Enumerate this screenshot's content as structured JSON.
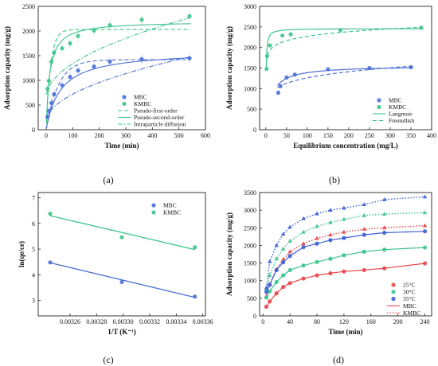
{
  "chart_data": [
    {
      "panel": "(a)",
      "type": "scatter",
      "xlabel": "Time (min)",
      "ylabel": "Adsorption capacity (mg/g)",
      "xlim": [
        -30,
        600
      ],
      "ylim": [
        0,
        2500
      ],
      "xticks": [
        0,
        100,
        200,
        300,
        400,
        500,
        600
      ],
      "yticks": [
        0,
        500,
        1000,
        1500,
        2000,
        2500
      ],
      "legend_position": "center-right",
      "legend": [
        "MBC",
        "KMBC",
        "Pseudo-first-order",
        "Pseudo-second-order",
        "Intraparticle diffusion"
      ],
      "series": [
        {
          "name": "MBC",
          "color": "#4a6fd4",
          "marker": "circle",
          "x": [
            5,
            10,
            20,
            30,
            60,
            90,
            120,
            180,
            240,
            360,
            540
          ],
          "y": [
            260,
            380,
            540,
            720,
            900,
            1070,
            1200,
            1280,
            1380,
            1430,
            1450
          ]
        },
        {
          "name": "KMBC",
          "color": "#3cc48c",
          "marker": "circle",
          "x": [
            5,
            10,
            20,
            30,
            60,
            90,
            120,
            180,
            240,
            360,
            540
          ],
          "y": [
            830,
            990,
            1380,
            1560,
            1650,
            1750,
            1900,
            2010,
            2120,
            2230,
            2300
          ]
        }
      ],
      "fits": [
        {
          "series": "MBC",
          "model": "Pseudo-first-order",
          "style": "dashed",
          "qe": 1420,
          "k": 0.022
        },
        {
          "series": "MBC",
          "model": "Pseudo-second-order",
          "style": "solid",
          "qe": 1600,
          "k": 1.16e-05
        },
        {
          "series": "MBC",
          "model": "Intraparticle diffusion",
          "style": "dashdot",
          "intercept": 150,
          "slope": 57
        },
        {
          "series": "KMBC",
          "model": "Pseudo-first-order",
          "style": "dashed",
          "qe": 2030,
          "k": 0.06
        },
        {
          "series": "KMBC",
          "model": "Pseudo-second-order",
          "style": "solid",
          "qe": 2200,
          "k": 3.5e-05
        },
        {
          "series": "KMBC",
          "model": "Intraparticle diffusion",
          "style": "dashdot",
          "intercept": 640,
          "slope": 70
        }
      ]
    },
    {
      "panel": "(b)",
      "type": "scatter",
      "xlabel": "Equilibrium concentration (mg/L)",
      "ylabel": "Adsorption capacity (mg/g)",
      "xlim": [
        -15,
        400
      ],
      "ylim": [
        0,
        3000
      ],
      "xticks": [
        0,
        50,
        100,
        150,
        200,
        250,
        300,
        350,
        400
      ],
      "yticks": [
        0,
        500,
        1000,
        1500,
        2000,
        2500,
        3000
      ],
      "legend_position": "center-right",
      "legend": [
        "MBC",
        "KMBC",
        "Langmuir",
        "Freundlish"
      ],
      "series": [
        {
          "name": "MBC",
          "color": "#4a6fd4",
          "marker": "circle",
          "x": [
            30,
            35,
            50,
            70,
            150,
            250,
            350
          ],
          "y": [
            900,
            1060,
            1270,
            1340,
            1470,
            1500,
            1520
          ]
        },
        {
          "name": "KMBC",
          "color": "#3cc48c",
          "marker": "circle",
          "x": [
            2,
            3,
            10,
            40,
            60,
            180,
            375
          ],
          "y": [
            1480,
            1790,
            2050,
            2290,
            2320,
            2420,
            2480
          ]
        }
      ],
      "fits": [
        {
          "series": "MBC",
          "model": "Langmuir",
          "style": "solid",
          "qmax": 1560,
          "KL": 0.08,
          "xrange": [
            28,
            355
          ]
        },
        {
          "series": "MBC",
          "model": "Freundlish",
          "style": "dashed",
          "KF": 600,
          "n": 6.2,
          "xrange": [
            28,
            355
          ]
        },
        {
          "series": "KMBC",
          "model": "Langmuir",
          "style": "solid",
          "qmax": 2460,
          "KL": 1.4,
          "xrange": [
            1,
            378
          ]
        },
        {
          "series": "KMBC",
          "model": "Freundlish",
          "style": "dashed",
          "KF": 1650,
          "n": 14.4,
          "xrange": [
            1,
            378
          ]
        }
      ]
    },
    {
      "panel": "(c)",
      "type": "scatter",
      "xlabel": "1/T (K⁻¹)",
      "ylabel": "ln(qe/ce)",
      "xlim": [
        0.003236,
        0.003362
      ],
      "ylim": [
        2.4,
        7.2
      ],
      "xticks": [
        0.00326,
        0.00328,
        0.0033,
        0.00332,
        0.00334,
        0.00336
      ],
      "xtick_labels": [
        "0.00326",
        "0.00328",
        "0.00330",
        "0.00332",
        "0.00334",
        "0.00336"
      ],
      "yticks": [
        3,
        4,
        5,
        6,
        7
      ],
      "legend_position": "top-right",
      "legend": [
        "MBC",
        "KMBC"
      ],
      "series": [
        {
          "name": "MBC",
          "color": "#4a6fd4",
          "marker": "circle",
          "x": [
            0.003245,
            0.003299,
            0.003354
          ],
          "y": [
            4.48,
            3.72,
            3.15
          ]
        },
        {
          "name": "KMBC",
          "color": "#3cc48c",
          "marker": "circle",
          "x": [
            0.003245,
            0.003299,
            0.003354
          ],
          "y": [
            6.38,
            5.46,
            5.07
          ]
        }
      ],
      "fits": [
        {
          "series": "MBC",
          "model": "linear",
          "style": "solid",
          "x": [
            0.003245,
            0.003354
          ],
          "y": [
            4.47,
            3.12
          ]
        },
        {
          "series": "KMBC",
          "model": "linear",
          "style": "solid",
          "x": [
            0.003245,
            0.003354
          ],
          "y": [
            6.3,
            4.98
          ]
        }
      ]
    },
    {
      "panel": "(d)",
      "type": "scatter",
      "xlabel": "Time (min)",
      "ylabel": "Adsorption capacity (mg/g)",
      "xlim": [
        -5,
        250
      ],
      "ylim": [
        0,
        3500
      ],
      "xticks": [
        0,
        40,
        80,
        120,
        160,
        200,
        240
      ],
      "yticks": [
        0,
        500,
        1000,
        1500,
        2000,
        2500,
        3000,
        3500
      ],
      "legend_position": "bottom-right",
      "legend": [
        "25°C",
        "30°C",
        "35°C",
        "MBC",
        "KMBC"
      ],
      "x": [
        5,
        10,
        20,
        30,
        40,
        60,
        80,
        100,
        120,
        150,
        180,
        240
      ],
      "series": [
        {
          "name": "25°C",
          "group": "MBC",
          "color": "#e8454a",
          "marker": "circle",
          "style": "solid",
          "y": [
            260,
            410,
            640,
            820,
            930,
            1060,
            1150,
            1210,
            1260,
            1300,
            1350,
            1490
          ]
        },
        {
          "name": "25°C",
          "group": "KMBC",
          "color": "#e8454a",
          "marker": "triangle",
          "style": "dotted",
          "y": [
            560,
            900,
            1320,
            1600,
            1820,
            2050,
            2200,
            2300,
            2380,
            2460,
            2500,
            2560
          ]
        },
        {
          "name": "30°C",
          "group": "MBC",
          "color": "#3cc48c",
          "marker": "circle",
          "style": "solid",
          "y": [
            520,
            700,
            960,
            1150,
            1300,
            1430,
            1530,
            1620,
            1720,
            1820,
            1880,
            1940
          ]
        },
        {
          "name": "30°C",
          "group": "KMBC",
          "color": "#3cc48c",
          "marker": "triangle",
          "style": "dotted",
          "y": [
            750,
            1150,
            1620,
            1900,
            2120,
            2380,
            2540,
            2650,
            2740,
            2850,
            2890,
            2930
          ]
        },
        {
          "name": "35°C",
          "group": "MBC",
          "color": "#3d5fd4",
          "marker": "circle",
          "style": "solid",
          "y": [
            680,
            880,
            1300,
            1520,
            1700,
            1950,
            2050,
            2150,
            2210,
            2300,
            2360,
            2400
          ]
        },
        {
          "name": "35°C",
          "group": "KMBC",
          "color": "#3d5fd4",
          "marker": "triangle",
          "style": "dotted",
          "y": [
            800,
            1540,
            2000,
            2320,
            2520,
            2760,
            2900,
            3000,
            3060,
            3160,
            3300,
            3380
          ]
        }
      ]
    }
  ]
}
